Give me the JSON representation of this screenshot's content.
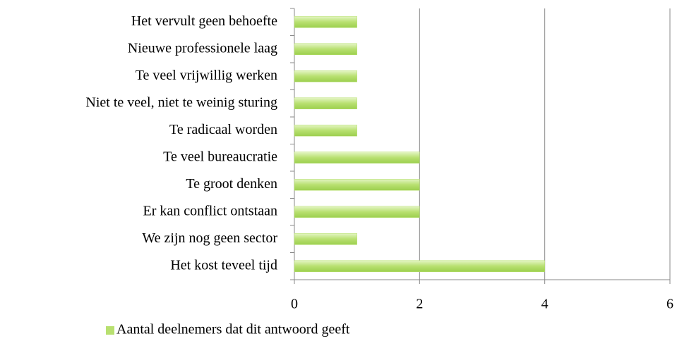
{
  "chart_data": {
    "type": "bar",
    "orientation": "horizontal",
    "categories": [
      "Het vervult geen behoefte",
      "Nieuwe professionele laag",
      "Te veel vrijwillig werken",
      "Niet te veel, niet te weinig sturing",
      "Te radicaal worden",
      "Te veel bureaucratie",
      "Te groot denken",
      "Er kan conflict ontstaan",
      "We zijn nog geen sector",
      "Het kost teveel tijd"
    ],
    "series": [
      {
        "name": "Aantal deelnemers dat dit antwoord geeft",
        "color": "#b8e070",
        "values": [
          1,
          1,
          1,
          1,
          1,
          2,
          2,
          2,
          1,
          4
        ]
      }
    ],
    "xlim": [
      0,
      6
    ],
    "xticks": [
      0,
      2,
      4,
      6
    ],
    "grid": true,
    "legend": "bottom"
  }
}
